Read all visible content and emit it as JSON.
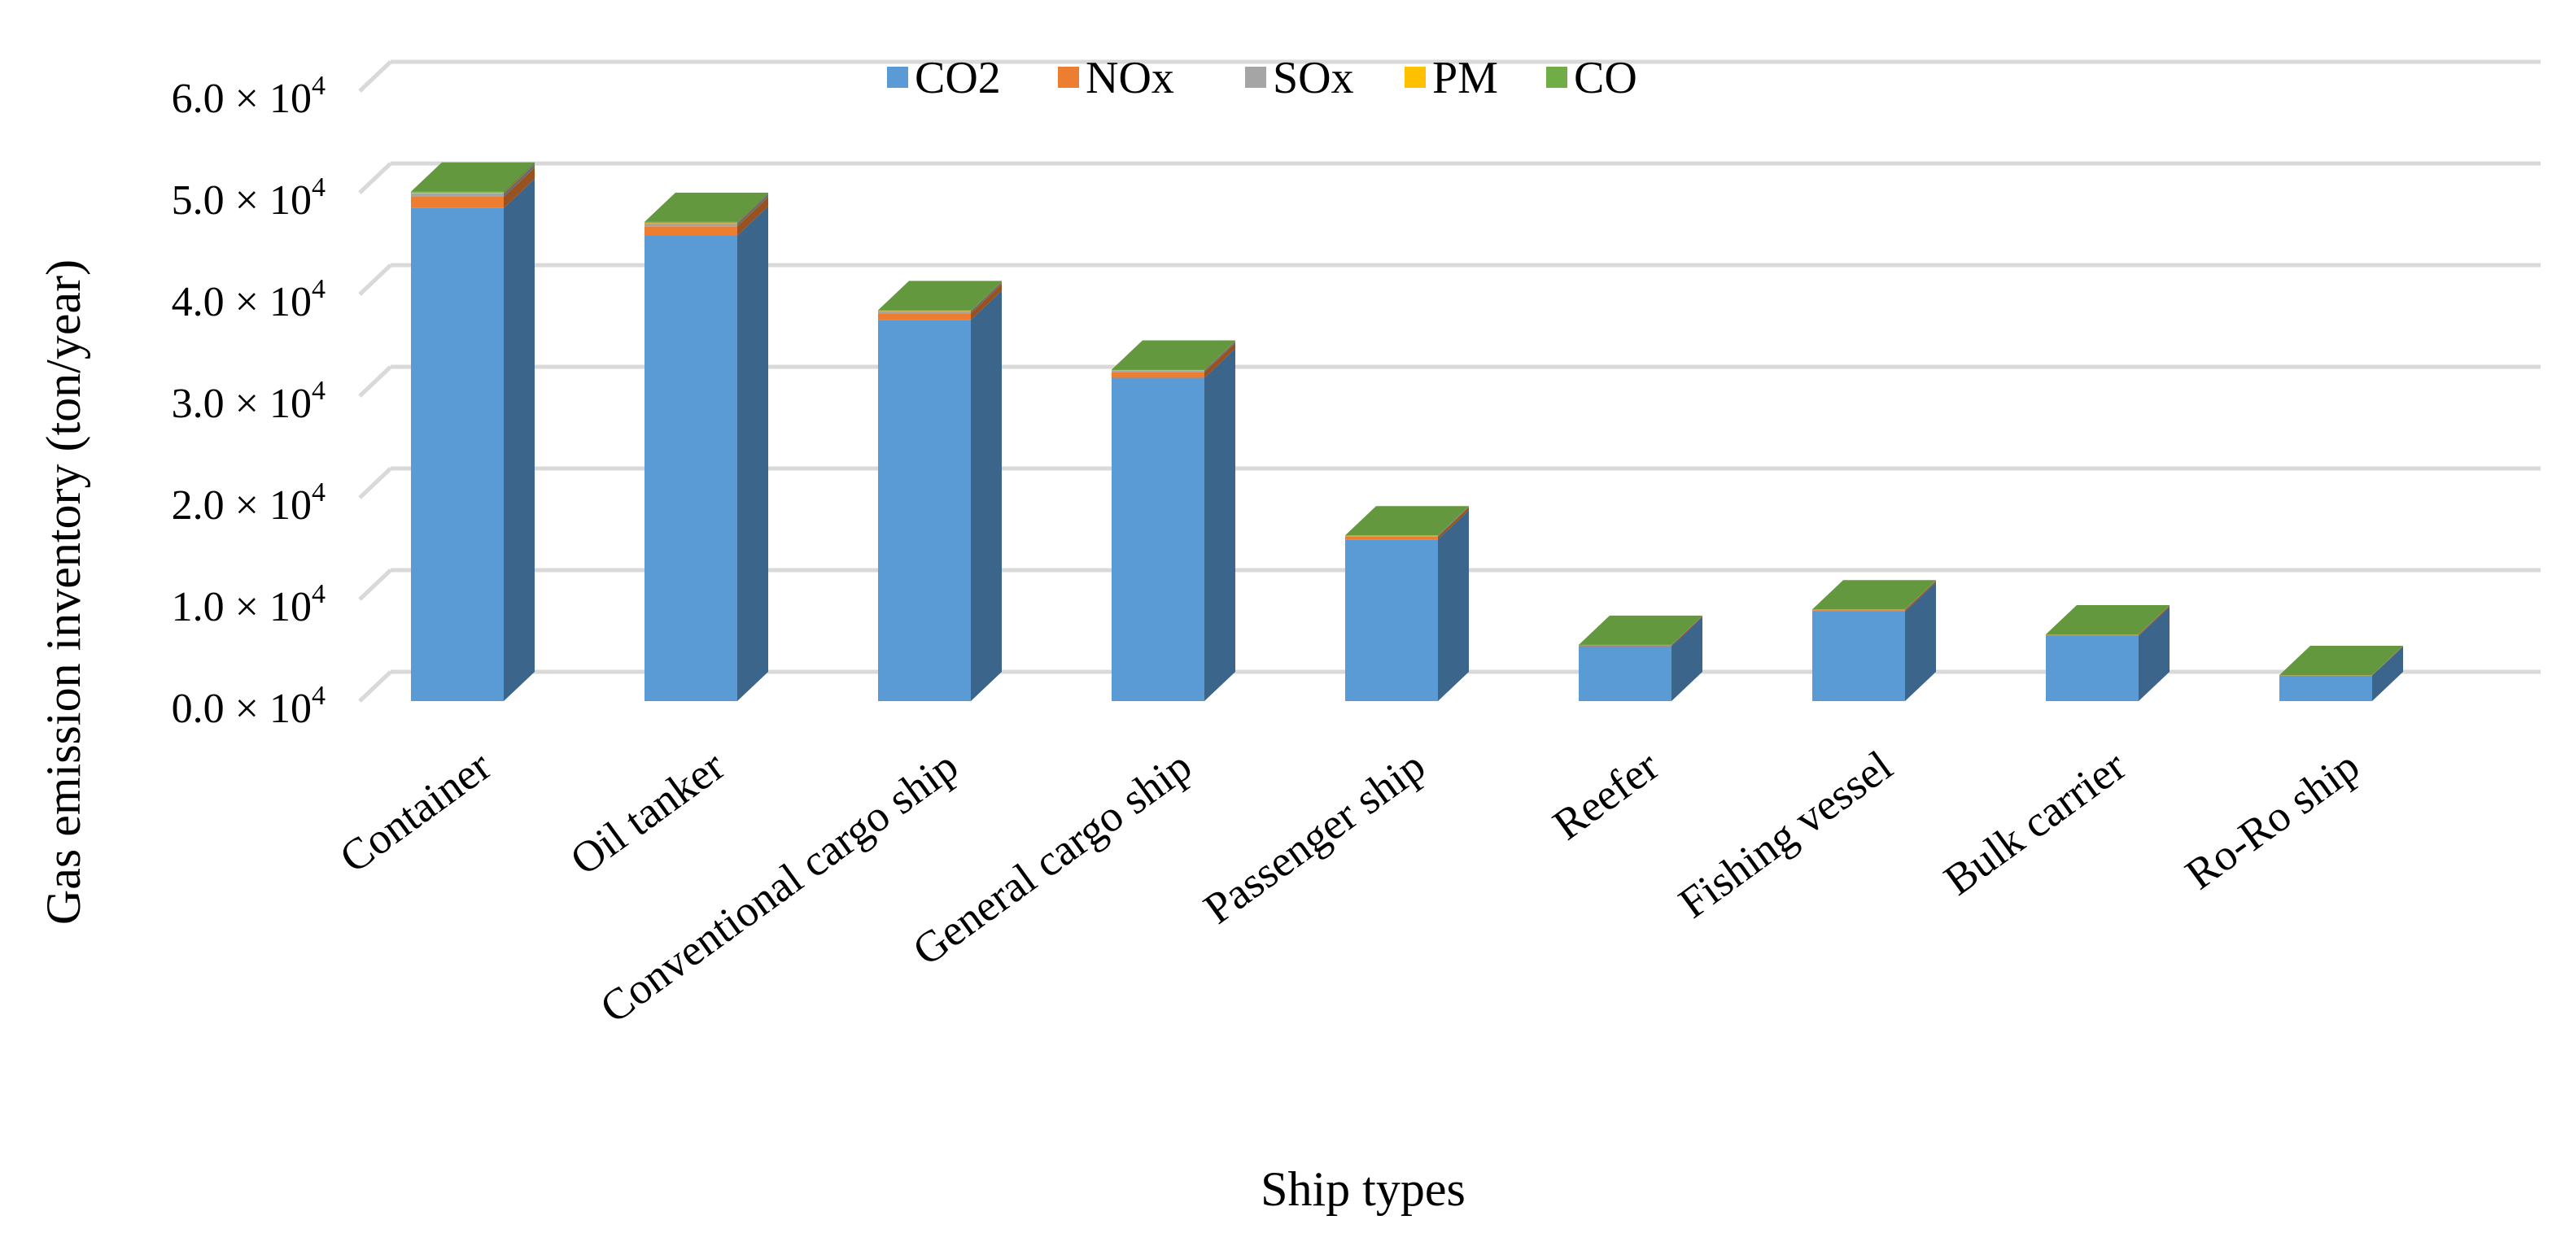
{
  "chart_data": {
    "type": "bar",
    "stacked": true,
    "three_d": true,
    "title": "",
    "xlabel": "Ship types",
    "ylabel": "Gas emission inventory (ton/year)",
    "ylim": [
      0,
      60000
    ],
    "grid": true,
    "legend_position": "top",
    "categories": [
      "Container",
      "Oil tanker",
      "Conventional cargo ship",
      "General cargo ship",
      "Passenger ship",
      "Reefer",
      "Fishing vessel",
      "Bulk carrier",
      "Ro-Ro ship"
    ],
    "series": [
      {
        "name": "CO2",
        "color": "#5B9BD5",
        "values": [
          48500,
          45800,
          37500,
          31800,
          15900,
          5400,
          8800,
          6400,
          2500
        ]
      },
      {
        "name": "NOx",
        "color": "#ED7D31",
        "values": [
          1100,
          900,
          650,
          550,
          270,
          90,
          150,
          110,
          45
        ]
      },
      {
        "name": "SOx",
        "color": "#A5A5A5",
        "values": [
          350,
          300,
          210,
          170,
          90,
          30,
          50,
          35,
          14
        ]
      },
      {
        "name": "PM",
        "color": "#FFC000",
        "values": [
          60,
          50,
          35,
          30,
          15,
          5,
          8,
          6,
          2
        ]
      },
      {
        "name": "CO",
        "color": "#70AD47",
        "values": [
          100,
          85,
          60,
          50,
          25,
          9,
          14,
          10,
          4
        ]
      }
    ],
    "y_ticks": [
      {
        "mantissa": "0.0",
        "value": 0
      },
      {
        "mantissa": "1.0",
        "value": 10000
      },
      {
        "mantissa": "2.0",
        "value": 20000
      },
      {
        "mantissa": "3.0",
        "value": 30000
      },
      {
        "mantissa": "4.0",
        "value": 40000
      },
      {
        "mantissa": "5.0",
        "value": 50000
      },
      {
        "mantissa": "6.0",
        "value": 60000
      }
    ],
    "y_tick_multiplier": "× 10",
    "y_tick_exponent": "4"
  }
}
